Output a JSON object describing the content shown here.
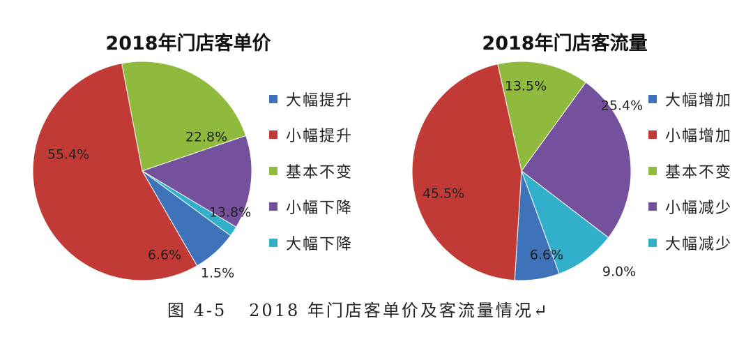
{
  "colors": {
    "blue": "#3f73b9",
    "red": "#c23a35",
    "green": "#8fba3e",
    "purple": "#74509d",
    "cyan": "#32b0cb"
  },
  "caption": "图 4-5   2018 年门店客单价及客流量情况↵",
  "chart_data": [
    {
      "type": "pie",
      "title": "2018年门店客单价",
      "legend_position": "right",
      "slices": [
        {
          "label": "大幅提升",
          "value": 6.6,
          "display": "6.6%",
          "color": "#3f73b9"
        },
        {
          "label": "小幅提升",
          "value": 55.4,
          "display": "55.4%",
          "color": "#c23a35"
        },
        {
          "label": "基本不变",
          "value": 22.8,
          "display": "22.8%",
          "color": "#8fba3e"
        },
        {
          "label": "小幅下降",
          "value": 13.8,
          "display": "13.8%",
          "color": "#74509d"
        },
        {
          "label": "大幅下降",
          "value": 1.5,
          "display": "1.5%",
          "color": "#32b0cb"
        }
      ]
    },
    {
      "type": "pie",
      "title": "2018年门店客流量",
      "legend_position": "right",
      "slices": [
        {
          "label": "大幅增加",
          "value": 6.6,
          "display": "6.6%",
          "color": "#3f73b9"
        },
        {
          "label": "小幅增加",
          "value": 45.5,
          "display": "45.5%",
          "color": "#c23a35"
        },
        {
          "label": "基本不变",
          "value": 13.5,
          "display": "13.5%",
          "color": "#8fba3e"
        },
        {
          "label": "小幅减少",
          "value": 25.4,
          "display": "25.4%",
          "color": "#74509d"
        },
        {
          "label": "大幅减少",
          "value": 9.0,
          "display": "9.0%",
          "color": "#32b0cb"
        }
      ]
    }
  ]
}
